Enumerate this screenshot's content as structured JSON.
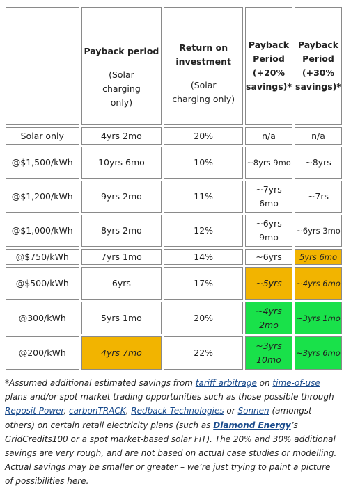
{
  "headers": {
    "payback": {
      "title": "Payback period",
      "note": "(Solar charging only)"
    },
    "roi": {
      "title": "Return on investment",
      "note": "(Solar charging only)"
    },
    "payback20": "Payback Period (+20% savings)*",
    "payback30": "Payback Period (+30% savings)*"
  },
  "rows": [
    {
      "label": "Solar only",
      "payback": "4yrs 2mo",
      "roi": "20%",
      "p20": "n/a",
      "p30": "n/a"
    },
    {
      "label": "@$1,500/kWh",
      "payback": "10yrs 6mo",
      "roi": "10%",
      "p20": "~8yrs 9mo",
      "p30": "~8yrs"
    },
    {
      "label": "@$1,200/kWh",
      "payback": "9yrs 2mo",
      "roi": "11%",
      "p20": "~7yrs 6mo",
      "p30": "~7rs"
    },
    {
      "label": "@$1,000/kWh",
      "payback": "8yrs 2mo",
      "roi": "12%",
      "p20": "~6yrs 9mo",
      "p30": "~6yrs 3mo"
    },
    {
      "label": "@$750/kWh",
      "payback": "7yrs 1mo",
      "roi": "14%",
      "p20": "~6yrs",
      "p30": "5yrs 6mo"
    },
    {
      "label": "@$500/kWh",
      "payback": "6yrs",
      "roi": "17%",
      "p20": "~5yrs",
      "p30": "~4yrs 6mo"
    },
    {
      "label": "@300/kWh",
      "payback": "5yrs 1mo",
      "roi": "20%",
      "p20": "~4yrs 2mo",
      "p30": "~3yrs 1mo"
    },
    {
      "label": "@200/kWh",
      "payback": "4yrs 7mo",
      "roi": "22%",
      "p20": "~3yrs 10mo",
      "p30": "~3yrs 6mo"
    }
  ],
  "colors": {
    "orange": "#f2b400",
    "green": "#19e14a",
    "link": "#1a4b8c"
  },
  "footnote": {
    "t1": "*Assumed additional estimated savings from ",
    "l1": "tariff arbitrage",
    "t2": " on ",
    "l2": "time-of-use",
    "t3": " plans and/or spot market trading opportunities such as those possible through ",
    "l3": "Reposit Power",
    "t4": ", ",
    "l4": "carbonTRACK",
    "t5": ", ",
    "l5": "Redback Technologies",
    "t6": " or ",
    "l6": "Sonnen",
    "t7": " (amongst others) on certain retail electricity plans (such as ",
    "l7": "Diamond Energy",
    "t8": "’s GridCredits100 or a spot market-based solar FiT). The 20% and 30% additional savings are very rough, and are not based on actual case studies or modelling. Actual savings may be smaller or greater – we’re just trying to paint a picture of possibilities here."
  }
}
